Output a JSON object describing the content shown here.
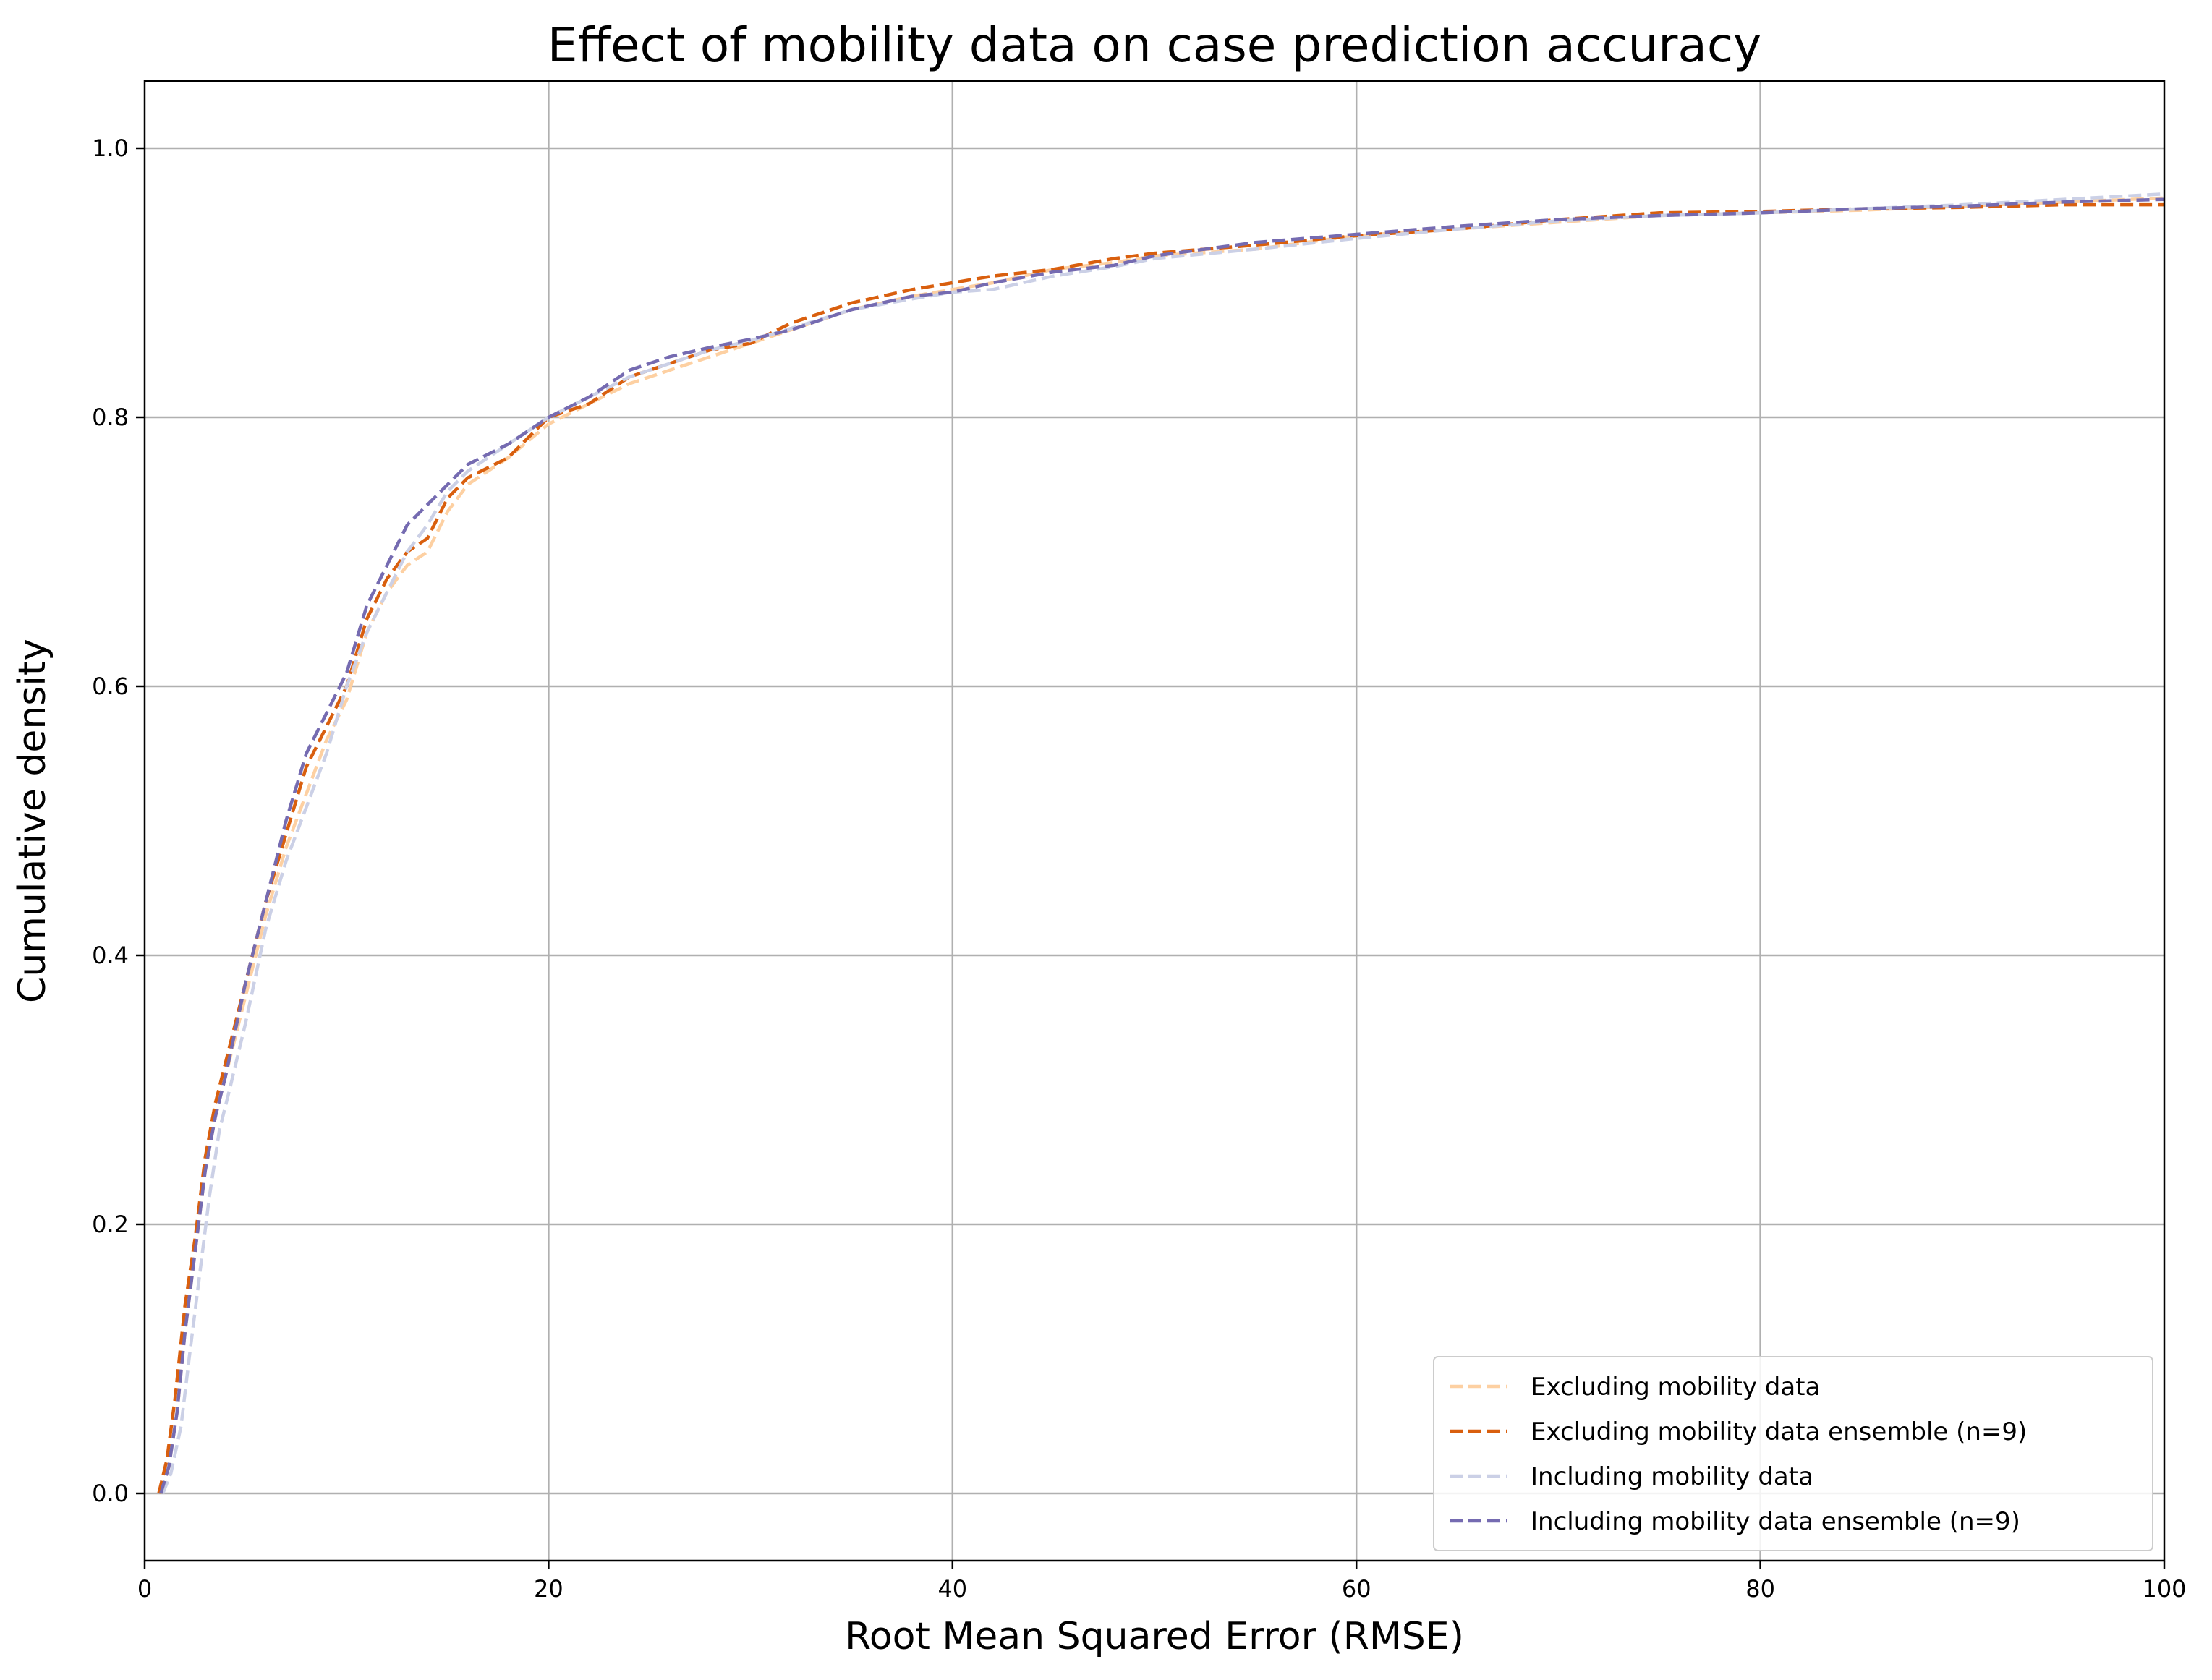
{
  "chart_data": {
    "type": "line",
    "title": "Effect of mobility data on case prediction accuracy",
    "xlabel": "Root Mean Squared Error (RMSE)",
    "ylabel": "Cumulative density",
    "xlim": [
      0,
      100
    ],
    "ylim": [
      -0.05,
      1.05
    ],
    "x_ticks": [
      0,
      20,
      40,
      60,
      80,
      100
    ],
    "y_ticks": [
      0.0,
      0.2,
      0.4,
      0.6,
      0.8,
      1.0
    ],
    "x_tick_labels": [
      "0",
      "20",
      "40",
      "60",
      "80",
      "100"
    ],
    "y_tick_labels": [
      "0.0",
      "0.2",
      "0.4",
      "0.6",
      "0.8",
      "1.0"
    ],
    "grid": true,
    "legend_position": "bottom-right",
    "series": [
      {
        "name": "Excluding mobility data",
        "color": "#fdd0a2",
        "line_style": "dashed",
        "x": [
          0.8,
          1.2,
          1.6,
          2.0,
          2.5,
          3.0,
          3.5,
          4.0,
          5.0,
          6.0,
          7.0,
          8.0,
          9.0,
          10.0,
          11.0,
          12.0,
          13.0,
          14.0,
          15.0,
          16.0,
          18.0,
          20.0,
          22.0,
          24.0,
          26.0,
          28.0,
          30.0,
          32.0,
          35.0,
          38.0,
          40.0,
          42.0,
          45.0,
          48.0,
          50.0,
          55.0,
          60.0,
          65.0,
          70.0,
          75.0,
          80.0,
          85.0,
          90.0,
          95.0,
          100.0
        ],
        "y": [
          0.0,
          0.02,
          0.06,
          0.12,
          0.18,
          0.24,
          0.28,
          0.31,
          0.37,
          0.43,
          0.48,
          0.52,
          0.56,
          0.59,
          0.64,
          0.67,
          0.69,
          0.7,
          0.73,
          0.75,
          0.77,
          0.795,
          0.81,
          0.825,
          0.835,
          0.845,
          0.855,
          0.865,
          0.88,
          0.89,
          0.895,
          0.9,
          0.91,
          0.915,
          0.92,
          0.925,
          0.935,
          0.94,
          0.945,
          0.95,
          0.952,
          0.954,
          0.957,
          0.96,
          0.963
        ]
      },
      {
        "name": "Excluding mobility data ensemble (n=9)",
        "color": "#d95f0e",
        "line_style": "dashed",
        "x": [
          0.7,
          1.1,
          1.5,
          2.0,
          2.5,
          3.0,
          3.5,
          4.0,
          5.0,
          6.0,
          7.0,
          8.0,
          9.0,
          10.0,
          11.0,
          12.0,
          13.0,
          14.0,
          15.0,
          16.0,
          18.0,
          20.0,
          22.0,
          24.0,
          26.0,
          28.0,
          30.0,
          32.0,
          35.0,
          38.0,
          40.0,
          42.0,
          45.0,
          48.0,
          50.0,
          55.0,
          60.0,
          65.0,
          70.0,
          75.0,
          80.0,
          85.0,
          90.0,
          95.0,
          100.0
        ],
        "y": [
          0.0,
          0.025,
          0.07,
          0.14,
          0.19,
          0.25,
          0.29,
          0.32,
          0.38,
          0.44,
          0.49,
          0.54,
          0.57,
          0.6,
          0.65,
          0.68,
          0.7,
          0.71,
          0.74,
          0.755,
          0.77,
          0.8,
          0.81,
          0.83,
          0.84,
          0.85,
          0.855,
          0.87,
          0.885,
          0.895,
          0.9,
          0.905,
          0.91,
          0.918,
          0.922,
          0.928,
          0.935,
          0.94,
          0.947,
          0.952,
          0.953,
          0.955,
          0.956,
          0.958,
          0.958
        ]
      },
      {
        "name": "Including mobility data",
        "color": "#cbd0e6",
        "line_style": "dashed",
        "x": [
          0.9,
          1.3,
          1.8,
          2.2,
          2.7,
          3.2,
          3.7,
          4.2,
          5.0,
          6.0,
          7.0,
          8.0,
          9.0,
          10.0,
          11.0,
          12.0,
          13.0,
          14.0,
          15.0,
          16.0,
          18.0,
          20.0,
          22.0,
          24.0,
          26.0,
          28.0,
          30.0,
          32.0,
          35.0,
          38.0,
          40.0,
          42.0,
          45.0,
          48.0,
          50.0,
          55.0,
          60.0,
          65.0,
          70.0,
          75.0,
          80.0,
          85.0,
          90.0,
          95.0,
          100.0
        ],
        "y": [
          0.0,
          0.015,
          0.05,
          0.1,
          0.16,
          0.22,
          0.27,
          0.3,
          0.35,
          0.42,
          0.47,
          0.51,
          0.55,
          0.6,
          0.64,
          0.67,
          0.7,
          0.72,
          0.745,
          0.76,
          0.78,
          0.8,
          0.815,
          0.83,
          0.84,
          0.85,
          0.857,
          0.866,
          0.88,
          0.888,
          0.893,
          0.895,
          0.905,
          0.912,
          0.918,
          0.925,
          0.933,
          0.94,
          0.946,
          0.95,
          0.952,
          0.955,
          0.958,
          0.962,
          0.966
        ]
      },
      {
        "name": "Including mobility data ensemble (n=9)",
        "color": "#756bb1",
        "line_style": "dashed",
        "x": [
          0.8,
          1.2,
          1.6,
          2.0,
          2.5,
          3.0,
          3.5,
          4.0,
          5.0,
          6.0,
          7.0,
          8.0,
          9.0,
          10.0,
          11.0,
          12.0,
          13.0,
          14.0,
          15.0,
          16.0,
          18.0,
          20.0,
          22.0,
          24.0,
          26.0,
          28.0,
          30.0,
          32.0,
          35.0,
          38.0,
          40.0,
          42.0,
          45.0,
          48.0,
          50.0,
          55.0,
          60.0,
          65.0,
          70.0,
          75.0,
          80.0,
          85.0,
          90.0,
          95.0,
          100.0
        ],
        "y": [
          0.0,
          0.02,
          0.06,
          0.12,
          0.18,
          0.24,
          0.28,
          0.31,
          0.38,
          0.44,
          0.5,
          0.55,
          0.58,
          0.61,
          0.66,
          0.69,
          0.72,
          0.735,
          0.75,
          0.765,
          0.78,
          0.8,
          0.815,
          0.835,
          0.845,
          0.852,
          0.858,
          0.865,
          0.88,
          0.89,
          0.893,
          0.9,
          0.908,
          0.913,
          0.92,
          0.93,
          0.936,
          0.942,
          0.947,
          0.95,
          0.952,
          0.955,
          0.957,
          0.96,
          0.962
        ]
      }
    ]
  }
}
